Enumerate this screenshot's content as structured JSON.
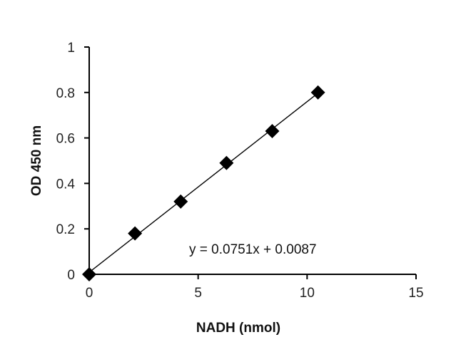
{
  "chart_data": {
    "type": "scatter",
    "title": "",
    "xlabel": "NADH (nmol)",
    "ylabel": "OD 450 nm",
    "xlim": [
      0,
      15
    ],
    "ylim": [
      0,
      1
    ],
    "x_ticks": [
      0,
      5,
      10,
      15
    ],
    "y_ticks": [
      0,
      0.2,
      0.4,
      0.6,
      0.8,
      1
    ],
    "x_tick_labels": [
      "0",
      "5",
      "10",
      "15"
    ],
    "y_tick_labels": [
      "0",
      "0.2",
      "0.4",
      "0.6",
      "0.8",
      "1"
    ],
    "grid": false,
    "legend": "none",
    "marker": "diamond",
    "marker_color": "#000000",
    "series": [
      {
        "x": [
          0,
          2.1,
          4.2,
          6.3,
          8.4,
          10.5
        ],
        "y": [
          0,
          0.18,
          0.32,
          0.49,
          0.63,
          0.8
        ]
      }
    ],
    "trendline": {
      "type": "linear",
      "slope": 0.0751,
      "intercept": 0.0087,
      "x_range": [
        0,
        10.5
      ],
      "equation_label": "y = 0.0751x + 0.0087"
    }
  }
}
